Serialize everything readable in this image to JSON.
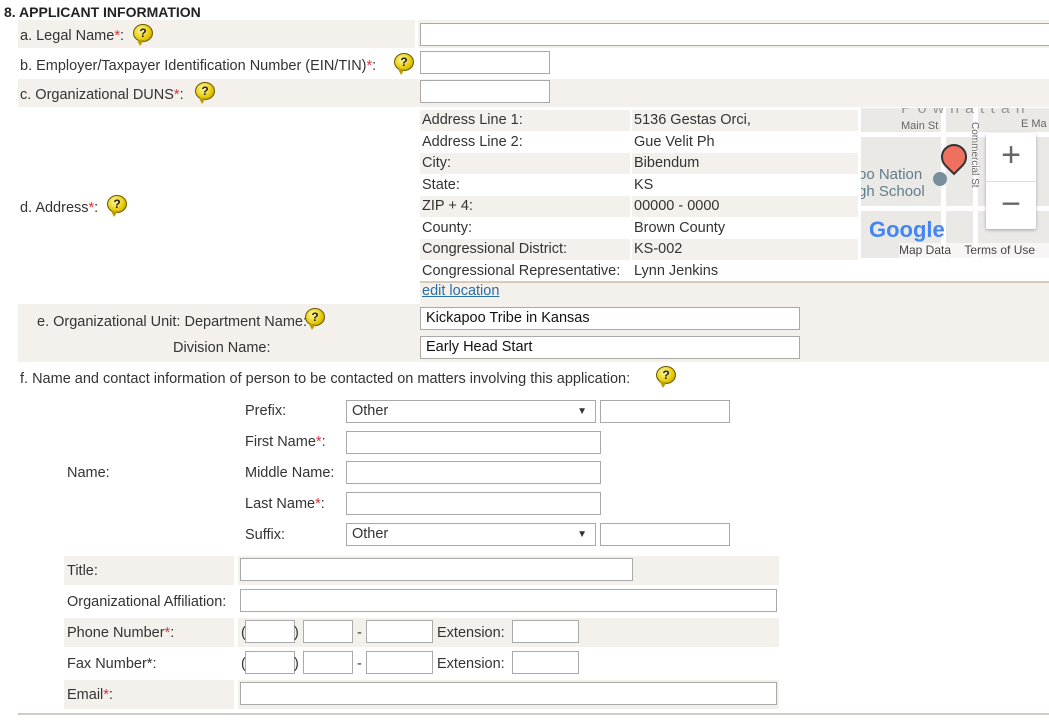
{
  "section_title": "8. APPLICANT INFORMATION",
  "legal_name": {
    "label": "a. Legal Name",
    "req": "*",
    ":": ":",
    "value": ""
  },
  "ein": {
    "label": "b. Employer/Taxpayer Identification Number (EIN/TIN)",
    "req": "*",
    "value": ""
  },
  "duns": {
    "label": "c. Organizational DUNS",
    "req": "*",
    "value": ""
  },
  "address": {
    "label": "d. Address",
    "req": "*",
    "rows": [
      {
        "label": "Address Line 1:",
        "value": "5136 Gestas Orci,"
      },
      {
        "label": "Address Line 2:",
        "value": "Gue Velit Ph"
      },
      {
        "label": "City:",
        "value": "Bibendum"
      },
      {
        "label": "State:",
        "value": "KS"
      },
      {
        "label": "ZIP + 4:",
        "value": "00000 - 0000"
      },
      {
        "label": "County:",
        "value": "Brown County"
      },
      {
        "label": "Congressional District:",
        "value": "KS-002"
      },
      {
        "label": "Congressional Representative:",
        "value": "Lynn Jenkins"
      }
    ],
    "edit_link": "edit location",
    "map": {
      "street1": "Main St",
      "street2": "Commercial St",
      "street3": "E Ma",
      "town": "Powhattan",
      "poi1": "oo Nation",
      "poi2": "gh School",
      "map_data": "Map Data",
      "terms": "Terms of Use",
      "logo": "Google",
      "zoom_in": "+",
      "zoom_out": "−"
    }
  },
  "org_unit": {
    "label": "e. Organizational Unit: Department Name:",
    "department": "Kickapoo Tribe in Kansas",
    "division_label": "Division Name:",
    "division": "Early Head Start"
  },
  "contact": {
    "intro": "f. Name and contact information of person to be contacted on matters involving this application:",
    "name_label": "Name:",
    "prefix_label": "Prefix:",
    "prefix_value": "Other",
    "first_label": "First Name",
    "middle_label": "Middle Name:",
    "last_label": "Last Name",
    "suffix_label": "Suffix:",
    "suffix_value": "Other",
    "title_label": "Title:",
    "affiliation_label": "Organizational Affiliation:",
    "phone_label": "Phone Number",
    "fax_label": "Fax Number",
    "email_label": "Email",
    "extension_label": "Extension:",
    "paren_open": "(",
    "paren_close": ")",
    "dash": "-",
    "req": "*"
  },
  "colors": {
    "row_bg": "#f4f1ec",
    "required": "#e0303a",
    "link": "#2a6ea6"
  }
}
